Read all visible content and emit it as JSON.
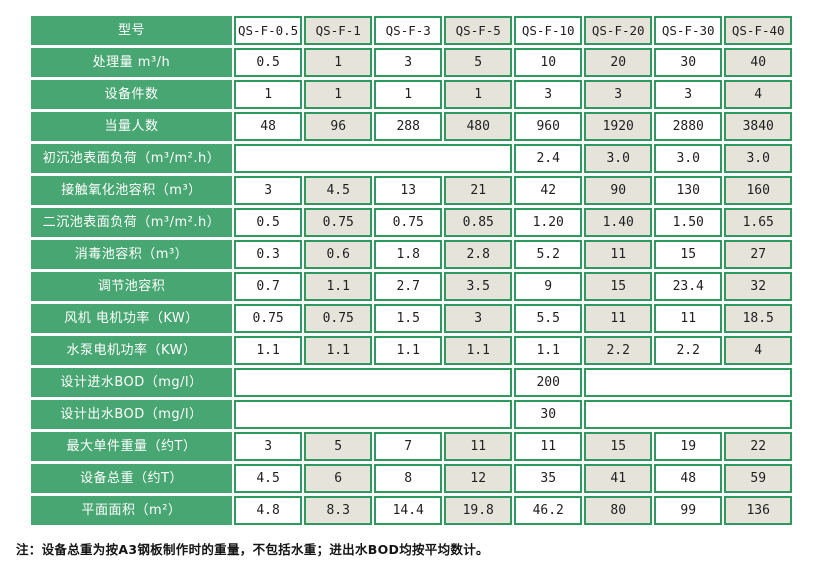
{
  "chart_data": {
    "type": "table",
    "corner_label": "型号",
    "models": [
      "QS-F-0.5",
      "QS-F-1",
      "QS-F-3",
      "QS-F-5",
      "QS-F-10",
      "QS-F-20",
      "QS-F-30",
      "QS-F-40"
    ],
    "rows": [
      {
        "label": "处理量 m³/h",
        "values": [
          "0.5",
          "1",
          "3",
          "5",
          "10",
          "20",
          "30",
          "40"
        ]
      },
      {
        "label": "设备件数",
        "values": [
          "1",
          "1",
          "1",
          "1",
          "3",
          "3",
          "3",
          "4"
        ]
      },
      {
        "label": "当量人数",
        "values": [
          "48",
          "96",
          "288",
          "480",
          "960",
          "1920",
          "2880",
          "3840"
        ]
      },
      {
        "label": "初沉池表面负荷（m³/m².h）",
        "leading_empty_span": 4,
        "values": [
          "2.4",
          "3.0",
          "3.0",
          "3.0"
        ]
      },
      {
        "label": "接触氧化池容积（m³）",
        "values": [
          "3",
          "4.5",
          "13",
          "21",
          "42",
          "90",
          "130",
          "160"
        ]
      },
      {
        "label": "二沉池表面负荷（m³/m².h）",
        "values": [
          "0.5",
          "0.75",
          "0.75",
          "0.85",
          "1.20",
          "1.40",
          "1.50",
          "1.65"
        ]
      },
      {
        "label": "消毒池容积（m³）",
        "values": [
          "0.3",
          "0.6",
          "1.8",
          "2.8",
          "5.2",
          "11",
          "15",
          "27"
        ]
      },
      {
        "label": "调节池容积",
        "values": [
          "0.7",
          "1.1",
          "2.7",
          "3.5",
          "9",
          "15",
          "23.4",
          "32"
        ]
      },
      {
        "label": "风机 电机功率（KW）",
        "values": [
          "0.75",
          "0.75",
          "1.5",
          "3",
          "5.5",
          "11",
          "11",
          "18.5"
        ]
      },
      {
        "label": "水泵电机功率（KW）",
        "values": [
          "1.1",
          "1.1",
          "1.1",
          "1.1",
          "1.1",
          "2.2",
          "2.2",
          "4"
        ]
      },
      {
        "label": "设计进水BOD（mg/l）",
        "leading_empty_span": 4,
        "values": [
          "200"
        ],
        "trailing_empty_span": 3
      },
      {
        "label": "设计出水BOD（mg/l）",
        "leading_empty_span": 4,
        "values": [
          "30"
        ],
        "trailing_empty_span": 3
      },
      {
        "label": "最大单件重量（约T）",
        "values": [
          "3",
          "5",
          "7",
          "11",
          "11",
          "15",
          "19",
          "22"
        ]
      },
      {
        "label": "设备总重（约T）",
        "values": [
          "4.5",
          "6",
          "8",
          "12",
          "35",
          "41",
          "48",
          "59"
        ]
      },
      {
        "label": "平面面积（m²）",
        "values": [
          "4.8",
          "8.3",
          "14.4",
          "19.8",
          "46.2",
          "80",
          "99",
          "136"
        ]
      }
    ],
    "footnote": "注：设备总重为按A3钢板制作时的重量，不包括水重；进出水BOD均按平均数计。"
  },
  "colors": {
    "label_green": "#47a671",
    "grid_green": "#2f9a5f",
    "alt_column_bg": "#e6e4da",
    "cell_bg": "#ffffff",
    "label_text": "#ffffff",
    "value_text": "#1f1f1f"
  }
}
